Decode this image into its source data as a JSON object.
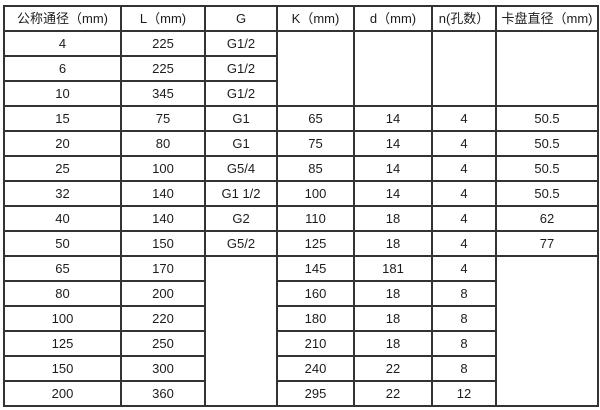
{
  "chart_data": {
    "type": "table",
    "title": "",
    "grid": true,
    "columns": [
      "公称通径（mm)",
      "L（mm)",
      "G",
      "K（mm)",
      "d（mm)",
      "n(孔数）",
      "卡盘直径（mm)"
    ],
    "rows": [
      {
        "cells": [
          {
            "t": "4"
          },
          {
            "t": "225"
          },
          {
            "t": "G1/2"
          },
          {
            "t": "",
            "rs": 3
          },
          {
            "t": "",
            "rs": 3
          },
          {
            "t": "",
            "rs": 3
          },
          {
            "t": "",
            "rs": 3
          }
        ]
      },
      {
        "cells": [
          {
            "t": "6"
          },
          {
            "t": "225"
          },
          {
            "t": "G1/2"
          }
        ]
      },
      {
        "cells": [
          {
            "t": "10"
          },
          {
            "t": "345"
          },
          {
            "t": "G1/2"
          }
        ]
      },
      {
        "cells": [
          {
            "t": "15"
          },
          {
            "t": "75"
          },
          {
            "t": "G1"
          },
          {
            "t": "65"
          },
          {
            "t": "14"
          },
          {
            "t": "4"
          },
          {
            "t": "50.5"
          }
        ]
      },
      {
        "cells": [
          {
            "t": "20"
          },
          {
            "t": "80"
          },
          {
            "t": "G1"
          },
          {
            "t": "75"
          },
          {
            "t": "14"
          },
          {
            "t": "4"
          },
          {
            "t": "50.5"
          }
        ]
      },
      {
        "cells": [
          {
            "t": "25"
          },
          {
            "t": "100"
          },
          {
            "t": "G5/4"
          },
          {
            "t": "85"
          },
          {
            "t": "14"
          },
          {
            "t": "4"
          },
          {
            "t": "50.5"
          }
        ]
      },
      {
        "cells": [
          {
            "t": "32"
          },
          {
            "t": "140"
          },
          {
            "t": "G1 1/2"
          },
          {
            "t": "100"
          },
          {
            "t": "14"
          },
          {
            "t": "4"
          },
          {
            "t": "50.5"
          }
        ]
      },
      {
        "cells": [
          {
            "t": "40"
          },
          {
            "t": "140"
          },
          {
            "t": "G2"
          },
          {
            "t": "110"
          },
          {
            "t": "18"
          },
          {
            "t": "4"
          },
          {
            "t": "62"
          }
        ]
      },
      {
        "cells": [
          {
            "t": "50"
          },
          {
            "t": "150"
          },
          {
            "t": "G5/2"
          },
          {
            "t": "125"
          },
          {
            "t": "18"
          },
          {
            "t": "4"
          },
          {
            "t": "77"
          }
        ]
      },
      {
        "cells": [
          {
            "t": "65"
          },
          {
            "t": "170"
          },
          {
            "t": "",
            "rs": 6
          },
          {
            "t": "145"
          },
          {
            "t": "181"
          },
          {
            "t": "4"
          },
          {
            "t": "",
            "rs": 6
          }
        ]
      },
      {
        "cells": [
          {
            "t": "80"
          },
          {
            "t": "200"
          },
          {
            "t": "160"
          },
          {
            "t": "18"
          },
          {
            "t": "8"
          }
        ]
      },
      {
        "cells": [
          {
            "t": "100"
          },
          {
            "t": "220"
          },
          {
            "t": "180"
          },
          {
            "t": "18"
          },
          {
            "t": "8"
          }
        ]
      },
      {
        "cells": [
          {
            "t": "125"
          },
          {
            "t": "250"
          },
          {
            "t": "210"
          },
          {
            "t": "18"
          },
          {
            "t": "8"
          }
        ]
      },
      {
        "cells": [
          {
            "t": "150"
          },
          {
            "t": "300"
          },
          {
            "t": "240"
          },
          {
            "t": "22"
          },
          {
            "t": "8"
          }
        ]
      },
      {
        "cells": [
          {
            "t": "200"
          },
          {
            "t": "360"
          },
          {
            "t": "295"
          },
          {
            "t": "22"
          },
          {
            "t": "12"
          }
        ]
      }
    ],
    "colors": {
      "grid_line": "#333333",
      "text": "#1c1c1c",
      "background": "#ffffff"
    }
  }
}
